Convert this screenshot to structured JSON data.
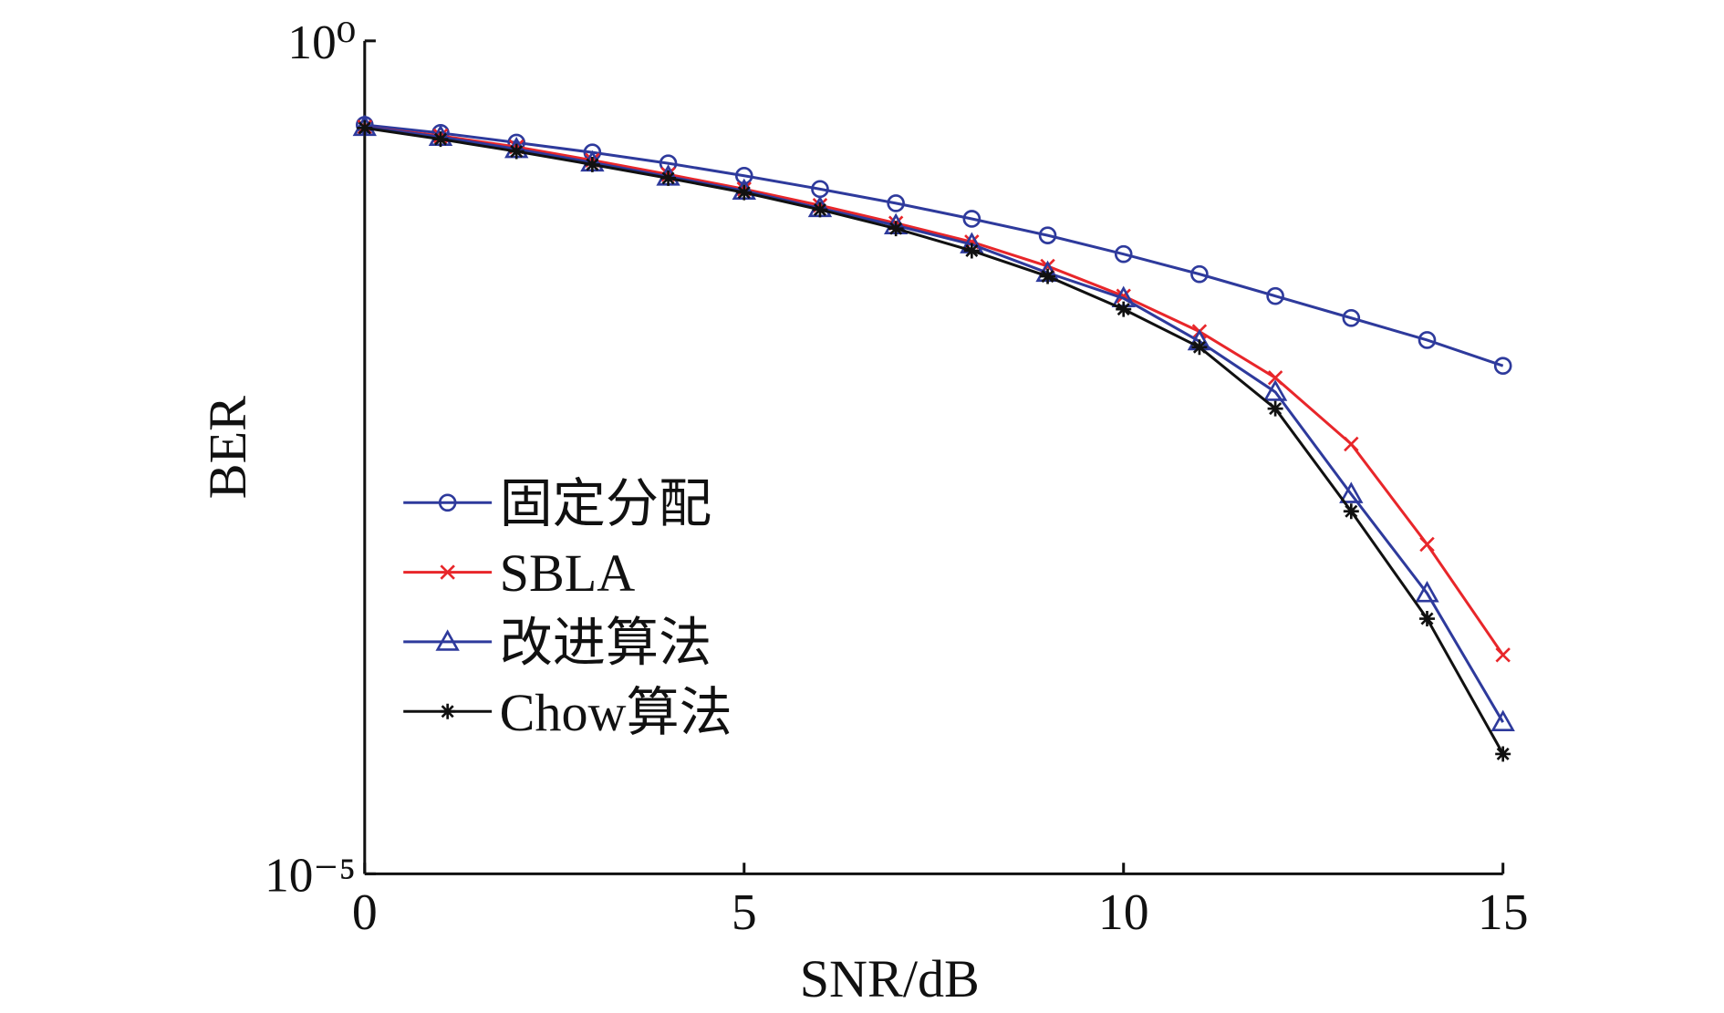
{
  "chart_data": {
    "type": "line",
    "log_y": true,
    "x_label": "SNR/dB",
    "y_label": "BER",
    "x": [
      0,
      1,
      2,
      3,
      4,
      5,
      6,
      7,
      8,
      9,
      10,
      11,
      12,
      13,
      14,
      15
    ],
    "xlim": [
      0,
      15
    ],
    "xticks": [
      0,
      5,
      10,
      15
    ],
    "ylim": [
      1e-05,
      1
    ],
    "yticks": [
      {
        "value": 1,
        "label": "10⁰"
      },
      {
        "value": 1e-05,
        "label": "10⁻⁵"
      }
    ],
    "grid": false,
    "legend": "left",
    "series": [
      {
        "name": "固定分配",
        "color": "#2e3a9c",
        "marker": "circle",
        "values": [
          0.313,
          0.28,
          0.245,
          0.214,
          0.184,
          0.155,
          0.129,
          0.106,
          0.0855,
          0.068,
          0.0525,
          0.0398,
          0.0294,
          0.0217,
          0.016,
          0.0112
        ]
      },
      {
        "name": "SBLA",
        "color": "#e8262a",
        "marker": "x",
        "values": [
          0.304,
          0.269,
          0.231,
          0.192,
          0.158,
          0.129,
          0.103,
          0.0805,
          0.0621,
          0.0444,
          0.0294,
          0.018,
          0.0095,
          0.0038,
          0.00095,
          0.000206
        ]
      },
      {
        "name": "改进算法",
        "color": "#2e3a9c",
        "marker": "triangle",
        "values": [
          0.304,
          0.265,
          0.224,
          0.186,
          0.153,
          0.126,
          0.099,
          0.078,
          0.06,
          0.0405,
          0.0285,
          0.0157,
          0.0078,
          0.0019,
          0.000483,
          8.12e-05
        ]
      },
      {
        "name": "Chow算法",
        "color": "#111111",
        "marker": "asterisk",
        "values": [
          0.3,
          0.257,
          0.217,
          0.181,
          0.15,
          0.123,
          0.097,
          0.0747,
          0.055,
          0.0386,
          0.0245,
          0.0145,
          0.0062,
          0.0015,
          0.00034,
          5.24e-05
        ]
      }
    ]
  }
}
